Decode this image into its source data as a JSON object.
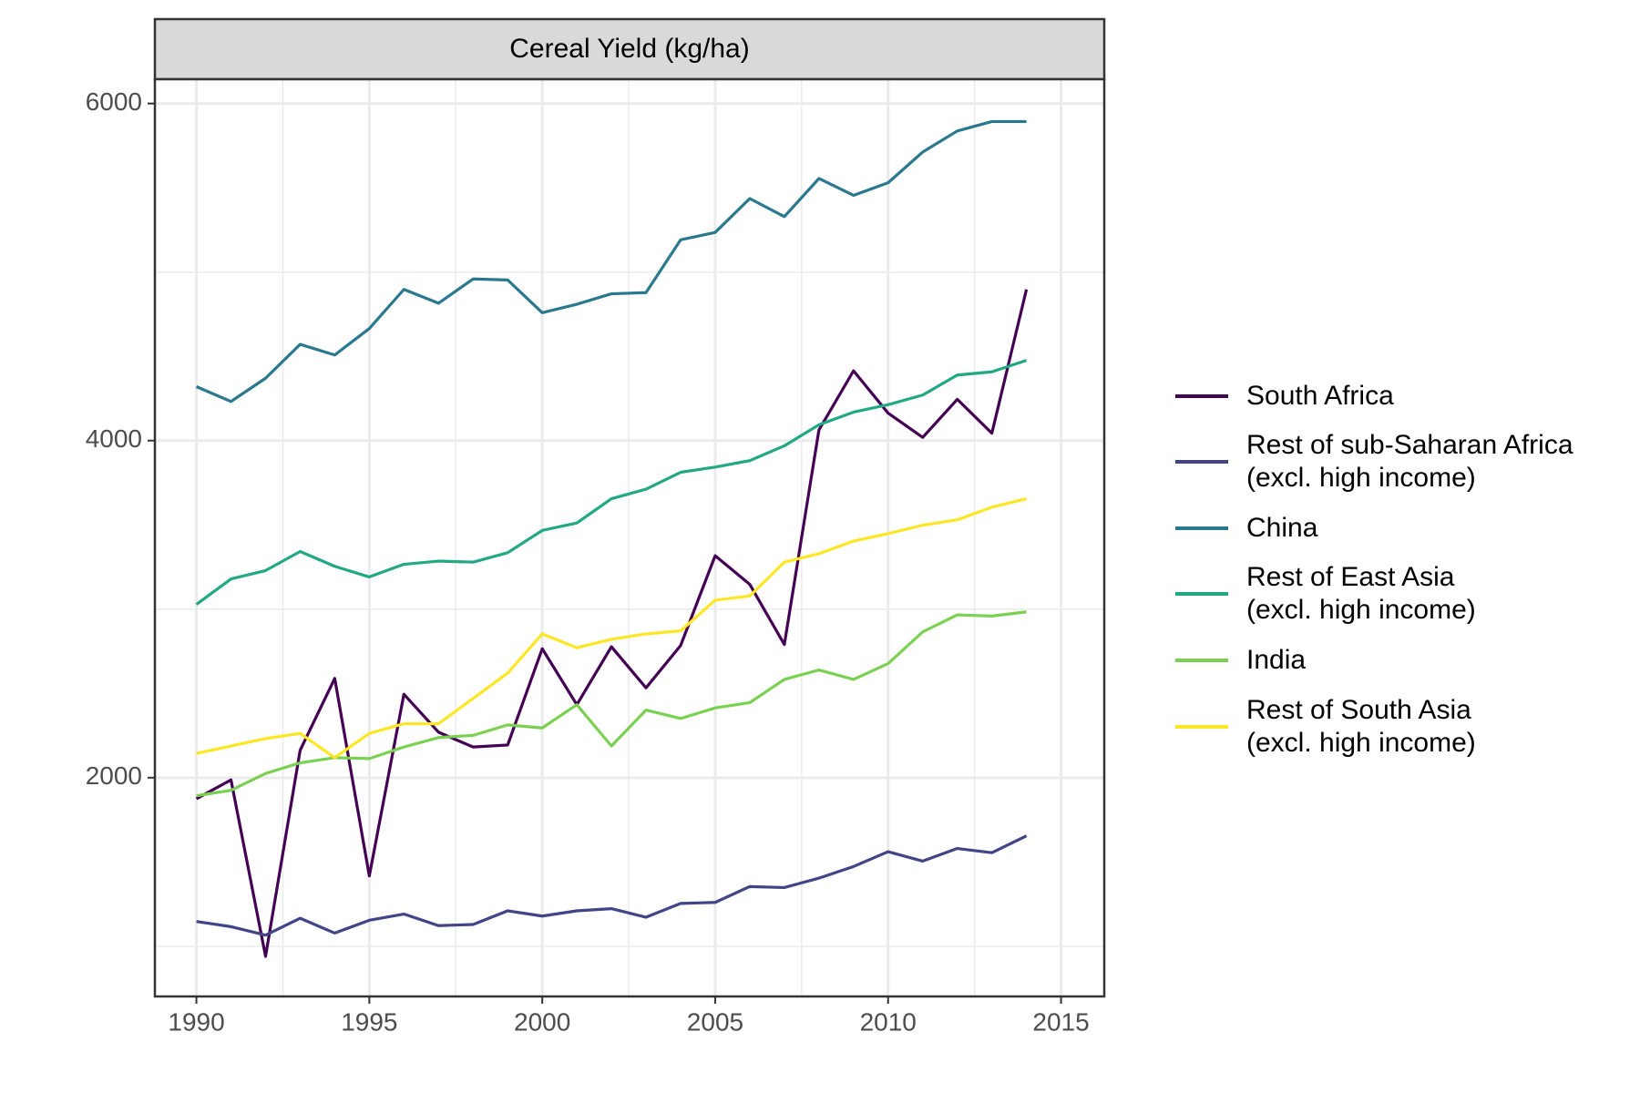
{
  "chart_data": {
    "type": "line",
    "title": "Cereal Yield (kg/ha)",
    "x": [
      1990,
      1991,
      1992,
      1993,
      1994,
      1995,
      1996,
      1997,
      1998,
      1999,
      2000,
      2001,
      2002,
      2003,
      2004,
      2005,
      2006,
      2007,
      2008,
      2009,
      2010,
      2011,
      2012,
      2013,
      2014
    ],
    "series": [
      {
        "name": "South Africa",
        "color": "#440154",
        "values": [
          1875,
          1987,
          940,
          2163,
          2589,
          1417,
          2495,
          2270,
          2182,
          2194,
          2765,
          2433,
          2777,
          2533,
          2784,
          3317,
          3147,
          2790,
          4063,
          4414,
          4163,
          4019,
          4245,
          4044,
          4897
        ]
      },
      {
        "name": "Rest of sub-Saharan Africa\n(excl. high income)",
        "color": "#414487",
        "values": [
          1147,
          1116,
          1066,
          1166,
          1078,
          1154,
          1191,
          1122,
          1129,
          1210,
          1179,
          1210,
          1223,
          1172,
          1254,
          1260,
          1354,
          1348,
          1404,
          1473,
          1561,
          1505,
          1580,
          1555,
          1655
        ]
      },
      {
        "name": "China",
        "color": "#2A788E",
        "values": [
          4320,
          4232,
          4370,
          4571,
          4508,
          4665,
          4897,
          4815,
          4959,
          4953,
          4759,
          4809,
          4871,
          4878,
          5191,
          5235,
          5436,
          5329,
          5555,
          5455,
          5530,
          5712,
          5837,
          5893,
          5893
        ]
      },
      {
        "name": "Rest of East Asia\n(excl. high income)",
        "color": "#22A884",
        "values": [
          3028,
          3179,
          3229,
          3342,
          3254,
          3191,
          3266,
          3285,
          3279,
          3335,
          3467,
          3511,
          3655,
          3712,
          3812,
          3843,
          3881,
          3969,
          4094,
          4169,
          4213,
          4270,
          4389,
          4408,
          4476
        ]
      },
      {
        "name": "India",
        "color": "#7AD151",
        "values": [
          1893,
          1925,
          2025,
          2088,
          2119,
          2113,
          2182,
          2238,
          2251,
          2313,
          2295,
          2433,
          2188,
          2401,
          2351,
          2414,
          2445,
          2583,
          2639,
          2583,
          2677,
          2865,
          2966,
          2959,
          2984
        ]
      },
      {
        "name": "Rest of South Asia\n(excl. high income)",
        "color": "#FDE725",
        "values": [
          2144,
          2188,
          2232,
          2263,
          2119,
          2263,
          2320,
          2320,
          2470,
          2621,
          2853,
          2771,
          2821,
          2853,
          2871,
          3053,
          3078,
          3279,
          3329,
          3404,
          3448,
          3498,
          3530,
          3605,
          3655
        ]
      }
    ],
    "xlim": [
      1988.8,
      2016.25
    ],
    "xticks": [
      1990,
      1995,
      2000,
      2005,
      2010,
      2015
    ],
    "xminor": [
      1992.5,
      1997.5,
      2002.5,
      2007.5,
      2012.5
    ],
    "ylim": [
      702,
      6144
    ],
    "yticks": [
      2000,
      4000,
      6000
    ],
    "yminor": [
      1000,
      3000,
      5000
    ],
    "grid": true,
    "legend": "right"
  }
}
